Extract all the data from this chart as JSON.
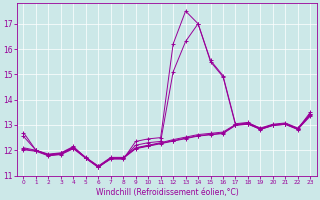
{
  "xlabel": "Windchill (Refroidissement éolien,°C)",
  "background_color": "#cce8e8",
  "grid_color": "#aacccc",
  "line_color": "#990099",
  "xlim": [
    -0.5,
    23.5
  ],
  "ylim": [
    11,
    17.8
  ],
  "yticks": [
    11,
    12,
    13,
    14,
    15,
    16,
    17
  ],
  "xticks": [
    0,
    1,
    2,
    3,
    4,
    5,
    6,
    7,
    8,
    9,
    10,
    11,
    12,
    13,
    14,
    15,
    16,
    17,
    18,
    19,
    20,
    21,
    22,
    23
  ],
  "lines": [
    [
      12.7,
      12.0,
      11.85,
      11.9,
      12.15,
      11.7,
      11.35,
      11.65,
      11.65,
      12.35,
      12.45,
      12.5,
      16.2,
      17.5,
      17.0,
      15.55,
      14.95,
      13.05,
      13.1,
      12.85,
      13.0,
      13.05,
      12.85,
      13.5
    ],
    [
      12.55,
      12.0,
      11.82,
      11.88,
      12.12,
      11.68,
      11.32,
      11.68,
      11.68,
      12.2,
      12.3,
      12.35,
      15.1,
      16.3,
      17.0,
      15.5,
      14.9,
      13.0,
      13.05,
      12.82,
      12.98,
      13.02,
      12.82,
      13.45
    ],
    [
      12.1,
      12.0,
      11.82,
      11.88,
      12.1,
      11.72,
      11.38,
      11.72,
      11.72,
      12.1,
      12.2,
      12.3,
      12.42,
      12.52,
      12.62,
      12.67,
      12.72,
      13.02,
      13.08,
      12.88,
      13.03,
      13.08,
      12.88,
      13.42
    ],
    [
      12.05,
      11.98,
      11.8,
      11.85,
      12.08,
      11.7,
      11.36,
      11.7,
      11.7,
      12.08,
      12.18,
      12.28,
      12.38,
      12.48,
      12.58,
      12.63,
      12.68,
      13.0,
      13.05,
      12.85,
      13.0,
      13.05,
      12.85,
      13.38
    ],
    [
      12.02,
      11.96,
      11.78,
      11.83,
      12.06,
      11.68,
      11.34,
      11.68,
      11.68,
      12.06,
      12.16,
      12.26,
      12.36,
      12.46,
      12.56,
      12.61,
      12.66,
      12.98,
      13.03,
      12.83,
      12.98,
      13.03,
      12.83,
      13.35
    ]
  ]
}
